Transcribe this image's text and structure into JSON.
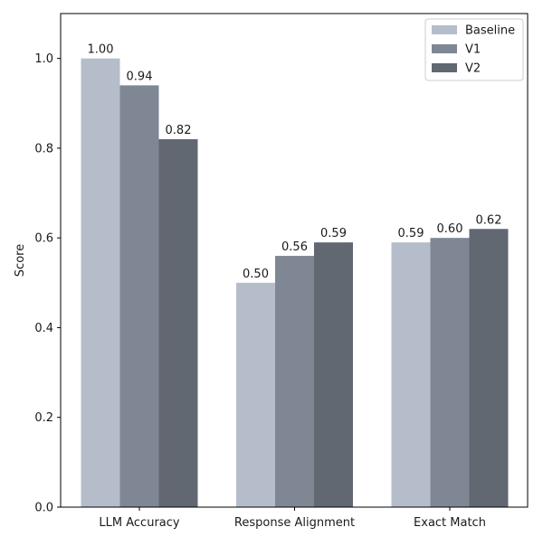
{
  "chart_data": {
    "type": "bar",
    "title": "",
    "xlabel": "",
    "ylabel": "Score",
    "ylim": [
      0,
      1.1
    ],
    "yticks": [
      "0.0",
      "0.2",
      "0.4",
      "0.6",
      "0.8",
      "1.0"
    ],
    "categories": [
      "LLM Accuracy",
      "Response Alignment",
      "Exact Match"
    ],
    "series": [
      {
        "name": "Baseline",
        "color": "#b5bdca",
        "values": [
          1.0,
          0.5,
          0.59
        ],
        "labels": [
          "1.00",
          "0.50",
          "0.59"
        ]
      },
      {
        "name": "V1",
        "color": "#7f8794",
        "values": [
          0.94,
          0.56,
          0.6
        ],
        "labels": [
          "0.94",
          "0.56",
          "0.60"
        ]
      },
      {
        "name": "V2",
        "color": "#626872",
        "values": [
          0.82,
          0.59,
          0.62
        ],
        "labels": [
          "0.82",
          "0.59",
          "0.62"
        ]
      }
    ],
    "legend": {
      "position": "top-right"
    },
    "grid": false
  }
}
